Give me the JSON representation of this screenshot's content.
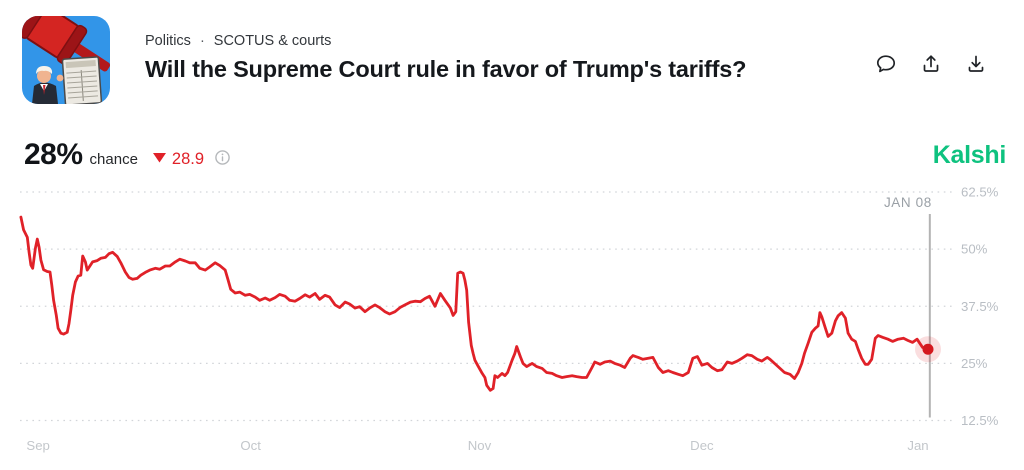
{
  "header": {
    "thumbnail": "gavel-trump-tariff-chart-illustration",
    "breadcrumb": {
      "items": [
        {
          "label": "Politics"
        },
        {
          "label": "SCOTUS & courts"
        }
      ],
      "separator": "·"
    },
    "title": "Will the Supreme Court rule in favor of Trump's tariffs?",
    "action_icons": [
      {
        "name": "comment-icon",
        "glyph": "speech-bubble"
      },
      {
        "name": "share-icon",
        "glyph": "arrow-up-from-tray"
      },
      {
        "name": "download-icon",
        "glyph": "arrow-down-to-tray"
      }
    ]
  },
  "price": {
    "value": "28%",
    "label": "chance",
    "change_direction": "down",
    "change": "28.9",
    "info_icon": "circle-i"
  },
  "brand": {
    "logo_text": "Kalshi",
    "color": "#0ec27f"
  },
  "colors": {
    "line_red": "#e02128",
    "dot_red": "#d4181e",
    "halo_red_opacity": "0.15",
    "grid_gray": "#d2d5d9",
    "y_label_gray": "#b9bec4",
    "x_label_gray": "#c3c7cb",
    "marker_gray": "#b3b3b3",
    "marker_label_gray": "#9aa0a6"
  },
  "chart_data": {
    "type": "line",
    "series_name": "chance",
    "unit": "%",
    "ylim": [
      12.5,
      62.5
    ],
    "grid": "dotted-horizontal",
    "y_axis_side": "right",
    "y_ticks": [
      {
        "label": "62.5%",
        "value": 62.5
      },
      {
        "label": "50%",
        "value": 50
      },
      {
        "label": "37.5%",
        "value": 37.5
      },
      {
        "label": "25%",
        "value": 25
      },
      {
        "label": "12.5%",
        "value": 12.5
      }
    ],
    "x_ticks": [
      {
        "label": "Sep",
        "t": 0.02
      },
      {
        "label": "Oct",
        "t": 0.254
      },
      {
        "label": "Nov",
        "t": 0.506
      },
      {
        "label": "Dec",
        "t": 0.751
      },
      {
        "label": "Jan",
        "t": 0.989
      }
    ],
    "marker": {
      "label": "JAN 08",
      "t": 1.002,
      "value": 28.1
    },
    "last_point": {
      "t": 1.0,
      "value": 28.1
    },
    "points": [
      [
        0.001,
        57.0
      ],
      [
        0.004,
        54.2
      ],
      [
        0.008,
        52.6
      ],
      [
        0.01,
        49.3
      ],
      [
        0.012,
        46.5
      ],
      [
        0.014,
        45.8
      ],
      [
        0.017,
        50.2
      ],
      [
        0.019,
        52.2
      ],
      [
        0.021,
        50.4
      ],
      [
        0.023,
        47.6
      ],
      [
        0.026,
        45.5
      ],
      [
        0.03,
        45.1
      ],
      [
        0.033,
        45.0
      ],
      [
        0.035,
        42.1
      ],
      [
        0.037,
        38.8
      ],
      [
        0.04,
        35.5
      ],
      [
        0.042,
        32.7
      ],
      [
        0.045,
        31.6
      ],
      [
        0.048,
        31.4
      ],
      [
        0.052,
        31.8
      ],
      [
        0.054,
        33.7
      ],
      [
        0.056,
        36.6
      ],
      [
        0.058,
        39.9
      ],
      [
        0.061,
        42.8
      ],
      [
        0.064,
        44.1
      ],
      [
        0.067,
        44.3
      ],
      [
        0.069,
        48.5
      ],
      [
        0.072,
        47.2
      ],
      [
        0.074,
        45.4
      ],
      [
        0.077,
        46.3
      ],
      [
        0.08,
        47.2
      ],
      [
        0.085,
        47.5
      ],
      [
        0.089,
        48.0
      ],
      [
        0.094,
        48.2
      ],
      [
        0.098,
        49.0
      ],
      [
        0.102,
        49.3
      ],
      [
        0.107,
        48.4
      ],
      [
        0.111,
        47.0
      ],
      [
        0.116,
        45.0
      ],
      [
        0.12,
        43.8
      ],
      [
        0.124,
        43.4
      ],
      [
        0.129,
        43.6
      ],
      [
        0.133,
        44.3
      ],
      [
        0.138,
        44.9
      ],
      [
        0.143,
        45.4
      ],
      [
        0.149,
        45.8
      ],
      [
        0.154,
        45.6
      ],
      [
        0.16,
        46.3
      ],
      [
        0.165,
        46.3
      ],
      [
        0.171,
        47.2
      ],
      [
        0.176,
        47.8
      ],
      [
        0.182,
        47.4
      ],
      [
        0.187,
        47.0
      ],
      [
        0.193,
        47.0
      ],
      [
        0.198,
        45.8
      ],
      [
        0.204,
        45.4
      ],
      [
        0.209,
        46.1
      ],
      [
        0.215,
        47.0
      ],
      [
        0.22,
        46.4
      ],
      [
        0.226,
        45.4
      ],
      [
        0.229,
        43.4
      ],
      [
        0.232,
        41.2
      ],
      [
        0.237,
        40.4
      ],
      [
        0.242,
        40.6
      ],
      [
        0.248,
        39.9
      ],
      [
        0.253,
        40.1
      ],
      [
        0.259,
        39.5
      ],
      [
        0.264,
        38.8
      ],
      [
        0.27,
        39.3
      ],
      [
        0.275,
        38.8
      ],
      [
        0.281,
        39.4
      ],
      [
        0.286,
        40.1
      ],
      [
        0.292,
        39.7
      ],
      [
        0.297,
        38.8
      ],
      [
        0.303,
        38.6
      ],
      [
        0.308,
        39.2
      ],
      [
        0.314,
        40.0
      ],
      [
        0.319,
        39.5
      ],
      [
        0.325,
        40.3
      ],
      [
        0.33,
        39.0
      ],
      [
        0.336,
        39.9
      ],
      [
        0.341,
        39.5
      ],
      [
        0.347,
        37.8
      ],
      [
        0.352,
        37.2
      ],
      [
        0.358,
        38.4
      ],
      [
        0.363,
        38.0
      ],
      [
        0.369,
        37.1
      ],
      [
        0.374,
        37.4
      ],
      [
        0.38,
        36.3
      ],
      [
        0.385,
        37.1
      ],
      [
        0.391,
        37.8
      ],
      [
        0.396,
        37.2
      ],
      [
        0.402,
        36.3
      ],
      [
        0.407,
        35.8
      ],
      [
        0.413,
        36.3
      ],
      [
        0.419,
        37.3
      ],
      [
        0.424,
        37.8
      ],
      [
        0.43,
        38.4
      ],
      [
        0.435,
        38.6
      ],
      [
        0.441,
        38.5
      ],
      [
        0.446,
        39.2
      ],
      [
        0.451,
        39.7
      ],
      [
        0.457,
        37.5
      ],
      [
        0.463,
        40.3
      ],
      [
        0.468,
        38.8
      ],
      [
        0.474,
        37.1
      ],
      [
        0.477,
        35.5
      ],
      [
        0.48,
        36.3
      ],
      [
        0.482,
        44.7
      ],
      [
        0.485,
        45.0
      ],
      [
        0.488,
        44.7
      ],
      [
        0.49,
        43.2
      ],
      [
        0.492,
        41.0
      ],
      [
        0.494,
        34.0
      ],
      [
        0.497,
        28.9
      ],
      [
        0.499,
        27.2
      ],
      [
        0.501,
        25.7
      ],
      [
        0.504,
        24.6
      ],
      [
        0.509,
        22.8
      ],
      [
        0.512,
        21.9
      ],
      [
        0.514,
        20.2
      ],
      [
        0.518,
        19.1
      ],
      [
        0.521,
        19.5
      ],
      [
        0.523,
        22.3
      ],
      [
        0.526,
        21.9
      ],
      [
        0.531,
        22.8
      ],
      [
        0.534,
        22.3
      ],
      [
        0.537,
        23.0
      ],
      [
        0.542,
        25.7
      ],
      [
        0.545,
        27.2
      ],
      [
        0.547,
        28.7
      ],
      [
        0.551,
        26.5
      ],
      [
        0.554,
        25.0
      ],
      [
        0.558,
        24.3
      ],
      [
        0.564,
        25.0
      ],
      [
        0.569,
        24.3
      ],
      [
        0.575,
        23.9
      ],
      [
        0.58,
        23.0
      ],
      [
        0.586,
        22.8
      ],
      [
        0.591,
        22.3
      ],
      [
        0.597,
        21.9
      ],
      [
        0.602,
        22.1
      ],
      [
        0.608,
        22.3
      ],
      [
        0.613,
        22.1
      ],
      [
        0.619,
        21.9
      ],
      [
        0.624,
        21.9
      ],
      [
        0.63,
        24.1
      ],
      [
        0.633,
        25.3
      ],
      [
        0.639,
        24.8
      ],
      [
        0.644,
        25.3
      ],
      [
        0.65,
        25.5
      ],
      [
        0.655,
        25.0
      ],
      [
        0.661,
        24.6
      ],
      [
        0.666,
        24.1
      ],
      [
        0.672,
        26.1
      ],
      [
        0.675,
        26.7
      ],
      [
        0.681,
        26.3
      ],
      [
        0.686,
        25.9
      ],
      [
        0.692,
        26.1
      ],
      [
        0.697,
        26.3
      ],
      [
        0.703,
        24.1
      ],
      [
        0.708,
        23.0
      ],
      [
        0.714,
        23.4
      ],
      [
        0.719,
        23.0
      ],
      [
        0.725,
        22.6
      ],
      [
        0.73,
        22.3
      ],
      [
        0.736,
        23.0
      ],
      [
        0.741,
        26.1
      ],
      [
        0.746,
        26.5
      ],
      [
        0.751,
        24.6
      ],
      [
        0.757,
        25.0
      ],
      [
        0.762,
        24.1
      ],
      [
        0.768,
        23.4
      ],
      [
        0.773,
        23.6
      ],
      [
        0.779,
        25.3
      ],
      [
        0.784,
        25.0
      ],
      [
        0.79,
        25.5
      ],
      [
        0.795,
        26.1
      ],
      [
        0.801,
        26.9
      ],
      [
        0.806,
        26.7
      ],
      [
        0.812,
        25.9
      ],
      [
        0.817,
        25.5
      ],
      [
        0.823,
        26.3
      ],
      [
        0.826,
        25.9
      ],
      [
        0.831,
        25.0
      ],
      [
        0.837,
        23.9
      ],
      [
        0.842,
        23.0
      ],
      [
        0.848,
        22.6
      ],
      [
        0.853,
        21.7
      ],
      [
        0.857,
        23.0
      ],
      [
        0.861,
        25.0
      ],
      [
        0.864,
        27.2
      ],
      [
        0.868,
        29.4
      ],
      [
        0.872,
        31.8
      ],
      [
        0.876,
        32.7
      ],
      [
        0.879,
        33.2
      ],
      [
        0.881,
        36.1
      ],
      [
        0.883,
        35.2
      ],
      [
        0.887,
        32.7
      ],
      [
        0.89,
        30.9
      ],
      [
        0.894,
        31.6
      ],
      [
        0.898,
        34.3
      ],
      [
        0.901,
        35.4
      ],
      [
        0.905,
        36.1
      ],
      [
        0.909,
        34.9
      ],
      [
        0.912,
        31.6
      ],
      [
        0.916,
        30.3
      ],
      [
        0.92,
        29.8
      ],
      [
        0.923,
        28.1
      ],
      [
        0.927,
        26.1
      ],
      [
        0.931,
        24.8
      ],
      [
        0.934,
        24.8
      ],
      [
        0.938,
        25.9
      ],
      [
        0.942,
        30.5
      ],
      [
        0.945,
        31.1
      ],
      [
        0.95,
        30.7
      ],
      [
        0.956,
        30.3
      ],
      [
        0.961,
        29.8
      ],
      [
        0.967,
        30.3
      ],
      [
        0.973,
        30.5
      ],
      [
        0.978,
        30.0
      ],
      [
        0.983,
        29.6
      ],
      [
        0.988,
        30.3
      ],
      [
        0.991,
        29.4
      ],
      [
        0.994,
        28.5
      ],
      [
        1.0,
        28.1
      ]
    ]
  }
}
